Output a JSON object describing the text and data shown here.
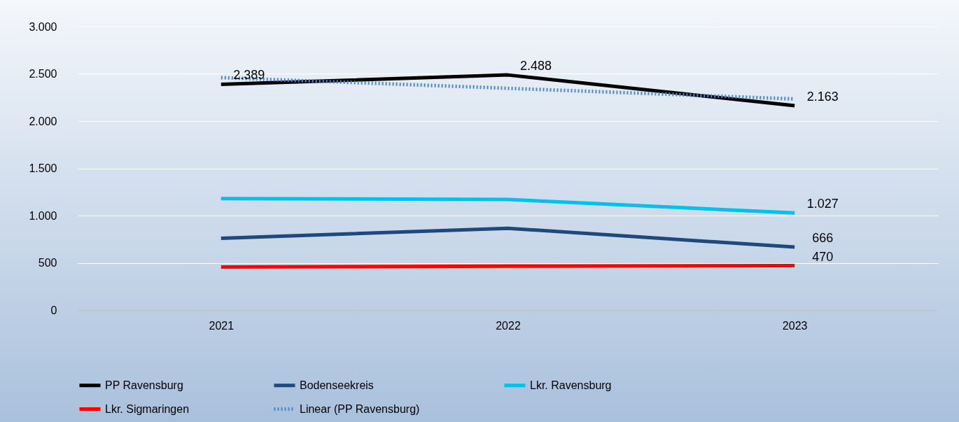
{
  "chart_data": {
    "type": "line",
    "categories": [
      "2021",
      "2022",
      "2023"
    ],
    "series": [
      {
        "name": "PP Ravensburg",
        "color": "#000000",
        "values": [
          2389,
          2488,
          2163
        ],
        "value_labels": [
          "2.389",
          "2.488",
          "2.163"
        ]
      },
      {
        "name": "Bodenseekreis",
        "color": "#1f497d",
        "values": [
          760,
          865,
          666
        ],
        "value_labels": [
          null,
          null,
          "666"
        ]
      },
      {
        "name": "Lkr. Ravensburg",
        "color": "#00c0f0",
        "values": [
          1180,
          1170,
          1027
        ],
        "value_labels": [
          null,
          null,
          "1.027"
        ]
      },
      {
        "name": "Lkr. Sigmaringen",
        "color": "#ff0000",
        "values": [
          455,
          465,
          470
        ],
        "value_labels": [
          null,
          null,
          "470"
        ]
      },
      {
        "name": "Linear (PP Ravensburg)",
        "color": "#4a86d0",
        "values": [
          2460,
          2347,
          2234
        ],
        "line_style": "dotted"
      }
    ],
    "ylim": [
      0,
      3000
    ],
    "yticks": [
      {
        "value": 0,
        "label": "0"
      },
      {
        "value": 500,
        "label": "500"
      },
      {
        "value": 1000,
        "label": "1.000"
      },
      {
        "value": 1500,
        "label": "1.500"
      },
      {
        "value": 2000,
        "label": "2.000"
      },
      {
        "value": 2500,
        "label": "2.500"
      },
      {
        "value": 3000,
        "label": "3.000"
      }
    ],
    "grid": "y",
    "legend": "bottom"
  }
}
